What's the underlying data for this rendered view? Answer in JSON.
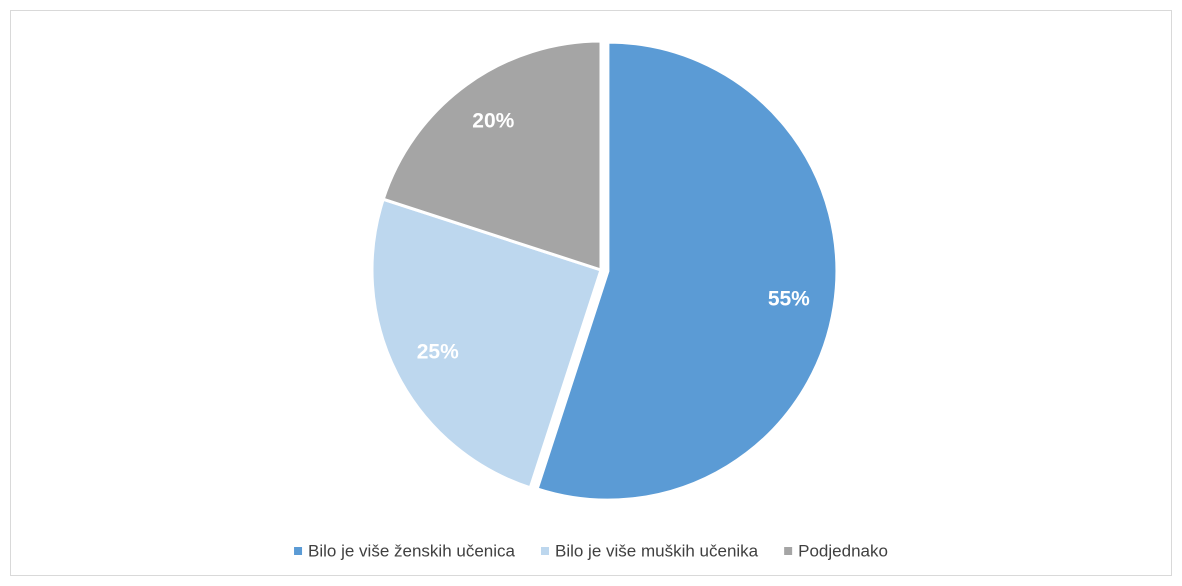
{
  "chart_data": {
    "type": "pie",
    "categories": [
      "Bilo je više ženskih učenica",
      "Bilo je više muških učenika",
      "Podjednako"
    ],
    "values": [
      55,
      25,
      20
    ],
    "value_labels": [
      "55%",
      "25%",
      "20%"
    ],
    "colors": [
      "#5b9bd5",
      "#bdd7ee",
      "#a5a5a5"
    ],
    "legend": "bottom"
  }
}
